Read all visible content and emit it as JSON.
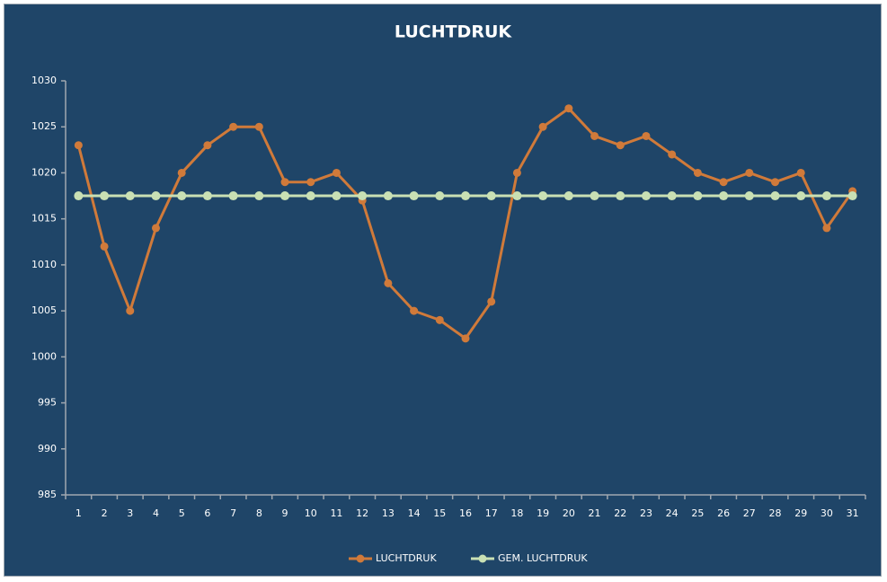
{
  "chart_data": {
    "type": "line",
    "title": "LUCHTDRUK",
    "categories": [
      "1",
      "2",
      "3",
      "4",
      "5",
      "6",
      "7",
      "8",
      "9",
      "10",
      "11",
      "12",
      "13",
      "14",
      "15",
      "16",
      "17",
      "18",
      "19",
      "20",
      "21",
      "22",
      "23",
      "24",
      "25",
      "26",
      "27",
      "28",
      "29",
      "30",
      "31"
    ],
    "series": [
      {
        "name": "LUCHTDRUK",
        "color": "#d07a3a",
        "values": [
          1023,
          1012,
          1005,
          1014,
          1020,
          1023,
          1025,
          1025,
          1019,
          1019,
          1020,
          1017,
          1008,
          1005,
          1004,
          1002,
          1006,
          1020,
          1025,
          1027,
          1024,
          1023,
          1024,
          1022,
          1020,
          1019,
          1020,
          1019,
          1020,
          1014,
          1018
        ]
      },
      {
        "name": "GEM. LUCHTDRUK",
        "color": "#c9e0b4",
        "values": [
          1017.5,
          1017.5,
          1017.5,
          1017.5,
          1017.5,
          1017.5,
          1017.5,
          1017.5,
          1017.5,
          1017.5,
          1017.5,
          1017.5,
          1017.5,
          1017.5,
          1017.5,
          1017.5,
          1017.5,
          1017.5,
          1017.5,
          1017.5,
          1017.5,
          1017.5,
          1017.5,
          1017.5,
          1017.5,
          1017.5,
          1017.5,
          1017.5,
          1017.5,
          1017.5,
          1017.5
        ]
      }
    ],
    "ylim": [
      985,
      1030
    ],
    "yticks": [
      985,
      990,
      995,
      1000,
      1005,
      1010,
      1015,
      1020,
      1025,
      1030
    ],
    "grid": false,
    "legend": "bottom"
  }
}
